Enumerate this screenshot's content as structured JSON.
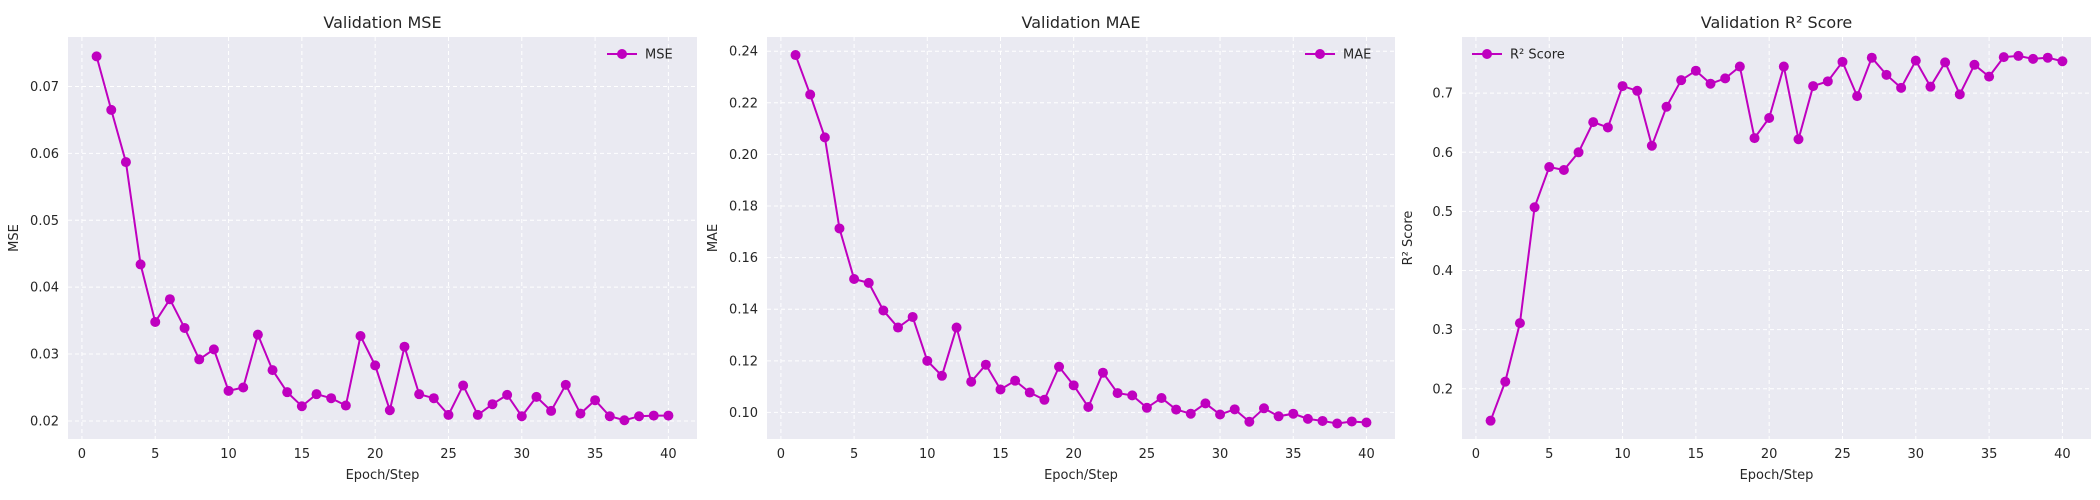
{
  "figure": {
    "colors": {
      "background": "#ffffff",
      "panel": "#eaeaf2",
      "grid": "#ffffff",
      "series": "#bf00bf",
      "text": "#262626"
    }
  },
  "chart_data": [
    {
      "type": "line",
      "title": "Validation MSE",
      "xlabel": "Epoch/Step",
      "ylabel": "MSE",
      "xlim": [
        -0.95,
        41.95
      ],
      "ylim": [
        0.0173,
        0.0774
      ],
      "xticks": [
        0,
        5,
        10,
        15,
        20,
        25,
        30,
        35,
        40
      ],
      "yticks": [
        0.02,
        0.03,
        0.04,
        0.05,
        0.06,
        0.07
      ],
      "ytick_labels": [
        "0.02",
        "0.03",
        "0.04",
        "0.05",
        "0.06",
        "0.07"
      ],
      "grid": true,
      "legend": "top-right",
      "x": [
        1,
        2,
        3,
        4,
        5,
        6,
        7,
        8,
        9,
        10,
        11,
        12,
        13,
        14,
        15,
        16,
        17,
        18,
        19,
        20,
        21,
        22,
        23,
        24,
        25,
        26,
        27,
        28,
        29,
        30,
        31,
        32,
        33,
        34,
        35,
        36,
        37,
        38,
        39,
        40
      ],
      "series": [
        {
          "name": "MSE",
          "marker": "circle",
          "values": [
            0.0745,
            0.0665,
            0.0587,
            0.0434,
            0.0348,
            0.0382,
            0.0339,
            0.0292,
            0.0307,
            0.0245,
            0.025,
            0.0329,
            0.0276,
            0.0243,
            0.0222,
            0.024,
            0.0234,
            0.0223,
            0.0327,
            0.0283,
            0.0216,
            0.0311,
            0.024,
            0.0234,
            0.0209,
            0.0253,
            0.0209,
            0.0225,
            0.0239,
            0.0207,
            0.0236,
            0.0215,
            0.0254,
            0.0211,
            0.0231,
            0.0207,
            0.0201,
            0.0207,
            0.0208,
            0.0208
          ]
        }
      ]
    },
    {
      "type": "line",
      "title": "Validation MAE",
      "xlabel": "Epoch/Step",
      "ylabel": "MAE",
      "xlim": [
        -0.95,
        41.95
      ],
      "ylim": [
        0.0897,
        0.2455
      ],
      "xticks": [
        0,
        5,
        10,
        15,
        20,
        25,
        30,
        35,
        40
      ],
      "yticks": [
        0.1,
        0.12,
        0.14,
        0.16,
        0.18,
        0.2,
        0.22,
        0.24
      ],
      "ytick_labels": [
        "0.10",
        "0.12",
        "0.14",
        "0.16",
        "0.18",
        "0.20",
        "0.22",
        "0.24"
      ],
      "grid": true,
      "legend": "top-right",
      "x": [
        1,
        2,
        3,
        4,
        5,
        6,
        7,
        8,
        9,
        10,
        11,
        12,
        13,
        14,
        15,
        16,
        17,
        18,
        19,
        20,
        21,
        22,
        23,
        24,
        25,
        26,
        27,
        28,
        29,
        30,
        31,
        32,
        33,
        34,
        35,
        36,
        37,
        38,
        39,
        40
      ],
      "series": [
        {
          "name": "MAE",
          "marker": "circle",
          "values": [
            0.2385,
            0.2232,
            0.2066,
            0.1713,
            0.1517,
            0.1502,
            0.1395,
            0.1329,
            0.137,
            0.12,
            0.1142,
            0.1329,
            0.1119,
            0.1185,
            0.1089,
            0.1123,
            0.1077,
            0.1049,
            0.1177,
            0.1105,
            0.1021,
            0.1154,
            0.1075,
            0.1066,
            0.1018,
            0.1056,
            0.1011,
            0.0995,
            0.1035,
            0.0992,
            0.1012,
            0.0964,
            0.1016,
            0.0985,
            0.0995,
            0.0975,
            0.0967,
            0.0957,
            0.0965,
            0.0961
          ]
        }
      ]
    },
    {
      "type": "line",
      "title": "Validation R² Score",
      "xlabel": "Epoch/Step",
      "ylabel": "R² Score",
      "xlim": [
        -0.95,
        41.95
      ],
      "ylim": [
        0.115,
        0.795
      ],
      "xticks": [
        0,
        5,
        10,
        15,
        20,
        25,
        30,
        35,
        40
      ],
      "yticks": [
        0.2,
        0.3,
        0.4,
        0.5,
        0.6,
        0.7
      ],
      "ytick_labels": [
        "0.2",
        "0.3",
        "0.4",
        "0.5",
        "0.6",
        "0.7"
      ],
      "grid": true,
      "legend": "top-left",
      "x": [
        1,
        2,
        3,
        4,
        5,
        6,
        7,
        8,
        9,
        10,
        11,
        12,
        13,
        14,
        15,
        16,
        17,
        18,
        19,
        20,
        21,
        22,
        23,
        24,
        25,
        26,
        27,
        28,
        29,
        30,
        31,
        32,
        33,
        34,
        35,
        36,
        37,
        38,
        39,
        40
      ],
      "series": [
        {
          "name": "R² Score",
          "marker": "circle",
          "values": [
            0.146,
            0.212,
            0.311,
            0.507,
            0.575,
            0.57,
            0.6,
            0.651,
            0.642,
            0.712,
            0.704,
            0.611,
            0.677,
            0.722,
            0.738,
            0.716,
            0.725,
            0.745,
            0.624,
            0.658,
            0.745,
            0.622,
            0.712,
            0.72,
            0.753,
            0.695,
            0.76,
            0.731,
            0.709,
            0.755,
            0.711,
            0.752,
            0.698,
            0.748,
            0.728,
            0.761,
            0.763,
            0.758,
            0.76,
            0.754
          ]
        }
      ]
    }
  ]
}
